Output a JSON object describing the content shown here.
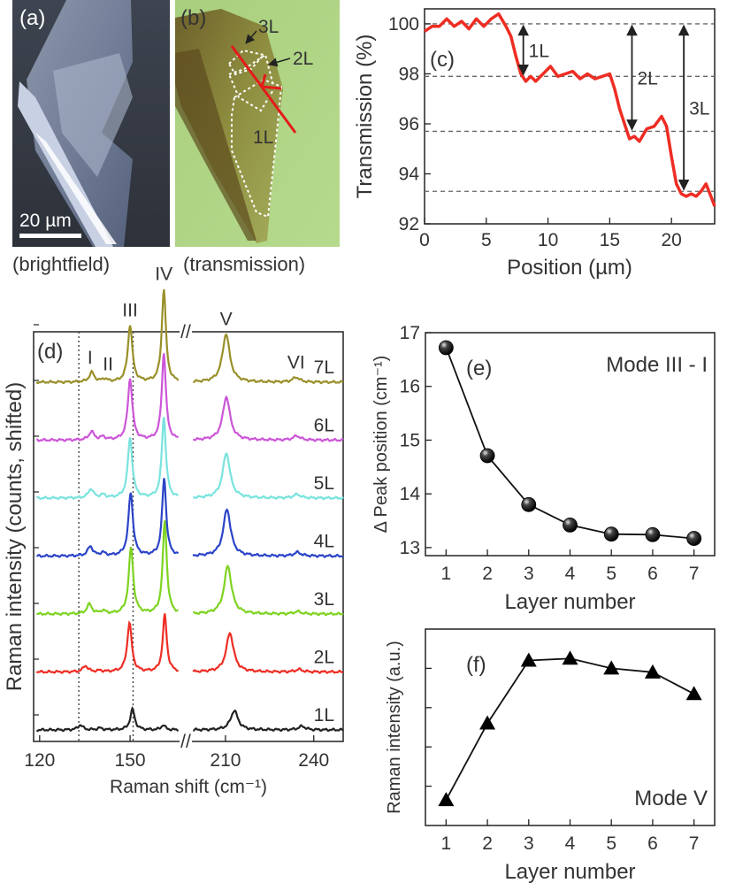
{
  "panels": {
    "a": {
      "tag": "(a)",
      "caption": "(brightfield)",
      "scalebar": "20 µm"
    },
    "b": {
      "tag": "(b)",
      "caption": "(transmission)",
      "labels": [
        "3L",
        "2L",
        "1L"
      ]
    },
    "c": {
      "tag": "(c)"
    },
    "d": {
      "tag": "(d)"
    },
    "e": {
      "tag": "(e)",
      "note": "Mode III - I"
    },
    "f": {
      "tag": "(f)",
      "note": "Mode V"
    }
  },
  "colors": {
    "transmission_line": "#ee2d24",
    "layer_colors": [
      "#222222",
      "#ee2d24",
      "#7ed321",
      "#2b44c8",
      "#79e3de",
      "#cc55d8",
      "#99902a"
    ]
  },
  "chart_data": [
    {
      "id": "c",
      "type": "line",
      "xlabel": "Position (µm)",
      "ylabel": "Transmission (%)",
      "xlim": [
        0,
        23.5
      ],
      "ylim": [
        92,
        100.6
      ],
      "xticks": [
        0,
        5,
        10,
        15,
        20
      ],
      "yticks": [
        92,
        94,
        96,
        98,
        100
      ],
      "reference_levels": [
        100.0,
        97.9,
        95.7,
        93.3
      ],
      "arrows": [
        {
          "label": "1L",
          "x": 8.0,
          "from": 100.0,
          "to": 97.9
        },
        {
          "label": "2L",
          "x": 16.8,
          "from": 100.0,
          "to": 95.7
        },
        {
          "label": "3L",
          "x": 21.0,
          "from": 100.0,
          "to": 93.3
        }
      ],
      "series": [
        {
          "name": "transmission",
          "x": [
            0,
            0.6,
            1.2,
            1.8,
            2.4,
            3.0,
            3.6,
            4.2,
            4.8,
            5.4,
            6.0,
            6.6,
            7.0,
            7.4,
            7.8,
            8.2,
            8.6,
            9.0,
            9.6,
            10.2,
            10.8,
            11.4,
            12.0,
            12.6,
            13.2,
            13.8,
            14.4,
            15.0,
            15.4,
            15.8,
            16.2,
            16.6,
            17.0,
            17.4,
            18.0,
            18.6,
            19.2,
            19.6,
            20.0,
            20.4,
            20.8,
            21.2,
            21.6,
            22.0,
            22.4,
            22.8,
            23.2,
            23.5
          ],
          "y": [
            99.7,
            99.9,
            99.9,
            100.2,
            99.9,
            100.1,
            99.8,
            100.2,
            99.9,
            100.2,
            100.4,
            99.9,
            99.5,
            98.7,
            98.0,
            97.7,
            97.9,
            97.7,
            98.0,
            98.3,
            97.9,
            98.0,
            98.1,
            97.8,
            98.0,
            97.8,
            97.9,
            98.0,
            97.4,
            96.6,
            96.0,
            95.4,
            95.5,
            95.3,
            95.8,
            95.9,
            96.3,
            95.9,
            94.7,
            93.6,
            93.2,
            93.1,
            93.2,
            93.1,
            93.3,
            93.6,
            93.1,
            92.7
          ]
        }
      ]
    },
    {
      "id": "d",
      "type": "line",
      "xlabel": "Raman shift (cm⁻¹)",
      "ylabel": "Raman intensity (counts, shifted)",
      "xticks": [
        "120",
        "150",
        "210",
        "240"
      ],
      "axis_break": "//",
      "dotted_lines_at": [
        133,
        151
      ],
      "layers": [
        "1L",
        "2L",
        "3L",
        "4L",
        "5L",
        "6L",
        "7L"
      ],
      "mode_labels": [
        "I",
        "II",
        "III",
        "IV",
        "V",
        "VI"
      ],
      "peak_positions": {
        "I": [
          133.5,
          135.2,
          136.5,
          136.8,
          137.0,
          137.2,
          137.3
        ],
        "II": [
          140,
          140,
          141,
          141,
          141,
          141,
          141.5
        ],
        "III": [
          150.8,
          149.8,
          150.3,
          150.2,
          150.0,
          150.0,
          150.0
        ],
        "IV": [
          161,
          161.5,
          161.5,
          161.3,
          161.2,
          161.2,
          161.2
        ],
        "V": [
          213,
          211.5,
          210.8,
          210.5,
          210.3,
          210.3,
          210.2
        ],
        "VI": [
          236,
          235,
          234.5,
          234.5,
          234.3,
          234.2,
          234.0
        ]
      },
      "peak_heights": [
        [
          0.08,
          0.03,
          0.34,
          0.08,
          0.32,
          0.06
        ],
        [
          0.1,
          0.02,
          0.82,
          0.95,
          0.65,
          0.04
        ],
        [
          0.16,
          0.05,
          1.1,
          1.55,
          0.8,
          0.04
        ],
        [
          0.16,
          0.05,
          1.05,
          1.3,
          0.78,
          0.06
        ],
        [
          0.15,
          0.05,
          1.0,
          1.35,
          0.75,
          0.06
        ],
        [
          0.14,
          0.05,
          1.02,
          1.45,
          0.72,
          0.07
        ],
        [
          0.16,
          0.05,
          0.95,
          1.55,
          0.8,
          0.08
        ]
      ]
    },
    {
      "id": "e",
      "type": "scatter",
      "xlabel": "Layer number",
      "ylabel": "Δ Peak position (cm⁻¹)",
      "xlim": [
        0.5,
        7.5
      ],
      "ylim": [
        12.85,
        17.0
      ],
      "xticks": [
        1,
        2,
        3,
        4,
        5,
        6,
        7
      ],
      "yticks": [
        13,
        14,
        15,
        16,
        17
      ],
      "x": [
        1,
        2,
        3,
        4,
        5,
        6,
        7
      ],
      "y": [
        16.72,
        14.71,
        13.8,
        13.42,
        13.25,
        13.24,
        13.17
      ]
    },
    {
      "id": "f",
      "type": "scatter",
      "xlabel": "Layer number",
      "ylabel": "Raman intensity (a.u.)",
      "xlim": [
        0.5,
        7.5
      ],
      "ylim": [
        0,
        1.0
      ],
      "xticks": [
        1,
        2,
        3,
        4,
        5,
        6,
        7
      ],
      "x": [
        1,
        2,
        3,
        4,
        5,
        6,
        7
      ],
      "y": [
        0.13,
        0.52,
        0.84,
        0.85,
        0.8,
        0.78,
        0.67
      ]
    }
  ]
}
